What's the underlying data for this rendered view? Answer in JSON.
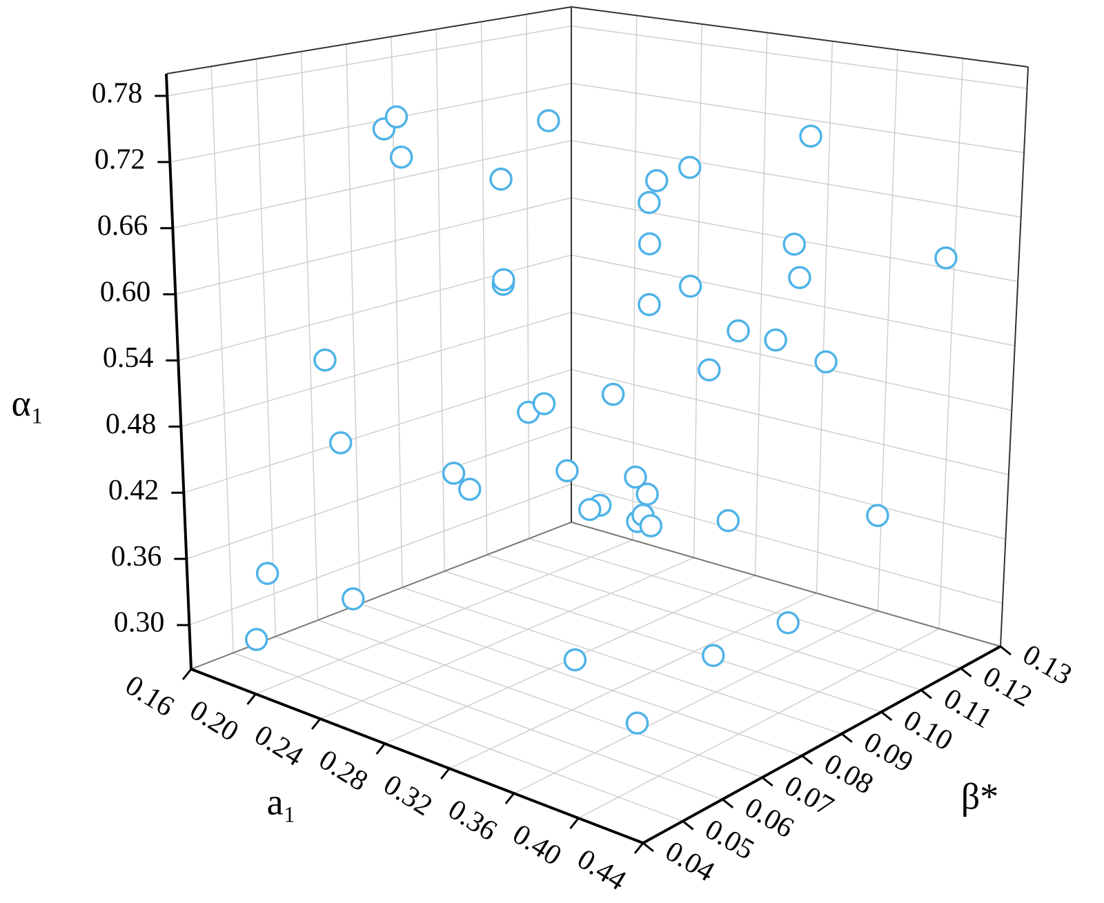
{
  "chart_data": {
    "type": "scatter3d",
    "xlabel": "a₁",
    "ylabel": "β*",
    "zlabel": "α₁",
    "xlim": [
      0.16,
      0.44
    ],
    "xticks": [
      0.16,
      {
        "value": 0.2,
        "label": "0.20"
      },
      0.24,
      0.28,
      0.32,
      0.36,
      {
        "value": 0.4,
        "label": "0.40"
      },
      0.44
    ],
    "ylim": [
      0.04,
      0.13
    ],
    "yticks": [
      0.04,
      0.05,
      0.06,
      0.07,
      0.08,
      0.09,
      {
        "value": 0.1,
        "label": "0.10"
      },
      0.11,
      0.12,
      0.13
    ],
    "zlim": [
      0.26,
      0.8
    ],
    "zticks": [
      {
        "value": 0.3,
        "label": "0.30"
      },
      0.36,
      0.42,
      0.48,
      0.54,
      {
        "value": 0.6,
        "label": "0.60"
      },
      0.66,
      0.72,
      0.78
    ],
    "grid": true,
    "color": "#4fb3e8",
    "x": [
      0.209,
      0.239,
      0.213,
      0.269,
      0.363,
      0.341,
      0.275,
      0.305,
      0.353,
      0.329,
      0.386,
      0.418,
      0.236,
      0.276,
      0.321,
      0.374,
      0.352,
      0.352,
      0.373,
      0.203,
      0.328,
      0.394,
      0.307,
      0.242,
      0.29,
      0.207,
      0.224,
      0.302,
      0.321,
      0.305,
      0.263,
      0.299,
      0.316,
      0.299,
      0.349,
      0.33,
      0.336,
      0.408,
      0.184,
      0.22,
      0.359,
      0.18,
      0.303,
      0.351,
      0.363
    ],
    "y": [
      0.0698,
      0.0614,
      0.0721,
      0.0845,
      0.1092,
      0.0896,
      0.0713,
      0.094,
      0.0773,
      0.085,
      0.097,
      0.1209,
      0.0863,
      0.0713,
      0.0977,
      0.1031,
      0.0761,
      0.1062,
      0.0891,
      0.0574,
      0.0997,
      0.1021,
      0.085,
      0.0897,
      0.0752,
      0.059,
      0.0788,
      0.076,
      0.085,
      0.094,
      0.0678,
      0.085,
      0.076,
      0.094,
      0.076,
      0.0853,
      0.1017,
      0.1103,
      0.0497,
      0.0561,
      0.108,
      0.0481,
      0.0774,
      0.0927,
      0.0693
    ],
    "z": [
      0.743,
      0.771,
      0.716,
      0.756,
      0.742,
      0.729,
      0.717,
      0.681,
      0.734,
      0.661,
      0.664,
      0.629,
      0.59,
      0.626,
      0.604,
      0.622,
      0.625,
      0.553,
      0.592,
      0.54,
      0.526,
      0.553,
      0.516,
      0.467,
      0.514,
      0.464,
      0.417,
      0.457,
      0.446,
      0.41,
      0.435,
      0.411,
      0.428,
      0.382,
      0.437,
      0.405,
      0.386,
      0.405,
      0.346,
      0.332,
      0.29,
      0.286,
      0.284,
      0.284,
      0.271
    ]
  }
}
